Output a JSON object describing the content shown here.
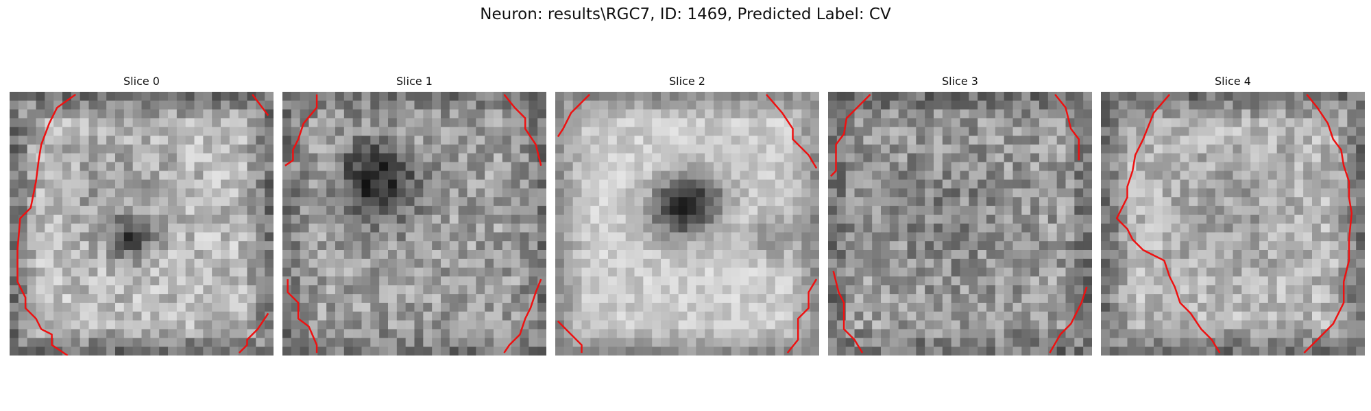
{
  "figure": {
    "title": "Neuron: results\\RGC7, ID: 1469, Predicted Label: CV",
    "line_color": "#ee1111",
    "colormap": "gray"
  },
  "panels": [
    {
      "title": "Slice 0",
      "seed": 11,
      "noise": 0.16,
      "base": 0.74,
      "edge_dark": 0.42,
      "blobs": [
        [
          0.47,
          0.56,
          0.08,
          0.42
        ],
        [
          0.4,
          0.38,
          0.25,
          0.12
        ]
      ],
      "contours": [
        [
          [
            0.25,
            0.01
          ],
          [
            0.18,
            0.06
          ],
          [
            0.15,
            0.12
          ],
          [
            0.12,
            0.2
          ],
          [
            0.11,
            0.26
          ],
          [
            0.1,
            0.34
          ],
          [
            0.08,
            0.44
          ],
          [
            0.04,
            0.48
          ],
          [
            0.03,
            0.6
          ],
          [
            0.03,
            0.72
          ],
          [
            0.06,
            0.78
          ],
          [
            0.06,
            0.82
          ],
          [
            0.1,
            0.86
          ],
          [
            0.12,
            0.9
          ],
          [
            0.16,
            0.92
          ],
          [
            0.16,
            0.96
          ],
          [
            0.22,
            1.0
          ]
        ],
        [
          [
            0.92,
            0.01
          ],
          [
            0.98,
            0.09
          ]
        ],
        [
          [
            0.98,
            0.84
          ],
          [
            0.94,
            0.9
          ],
          [
            0.9,
            0.94
          ],
          [
            0.9,
            0.96
          ],
          [
            0.87,
            0.99
          ]
        ]
      ]
    },
    {
      "title": "Slice 1",
      "seed": 23,
      "noise": 0.17,
      "base": 0.62,
      "edge_dark": 0.22,
      "blobs": [
        [
          0.38,
          0.36,
          0.14,
          0.38
        ],
        [
          0.32,
          0.28,
          0.1,
          0.2
        ]
      ],
      "contours": [
        [
          [
            0.13,
            0.01
          ],
          [
            0.13,
            0.06
          ],
          [
            0.08,
            0.12
          ],
          [
            0.06,
            0.18
          ],
          [
            0.04,
            0.22
          ],
          [
            0.04,
            0.26
          ],
          [
            0.01,
            0.28
          ]
        ],
        [
          [
            0.84,
            0.01
          ],
          [
            0.88,
            0.06
          ],
          [
            0.92,
            0.1
          ],
          [
            0.92,
            0.14
          ],
          [
            0.96,
            0.2
          ],
          [
            0.98,
            0.28
          ]
        ],
        [
          [
            0.02,
            0.71
          ],
          [
            0.02,
            0.76
          ],
          [
            0.06,
            0.8
          ],
          [
            0.06,
            0.86
          ],
          [
            0.1,
            0.89
          ],
          [
            0.13,
            0.96
          ],
          [
            0.13,
            0.99
          ]
        ],
        [
          [
            0.98,
            0.71
          ],
          [
            0.96,
            0.76
          ],
          [
            0.94,
            0.82
          ],
          [
            0.92,
            0.86
          ],
          [
            0.9,
            0.92
          ],
          [
            0.86,
            0.96
          ],
          [
            0.84,
            0.99
          ]
        ]
      ]
    },
    {
      "title": "Slice 2",
      "seed": 37,
      "noise": 0.1,
      "base": 0.8,
      "edge_dark": 0.35,
      "blobs": [
        [
          0.47,
          0.44,
          0.11,
          0.62
        ],
        [
          0.58,
          0.4,
          0.1,
          0.28
        ],
        [
          0.83,
          0.55,
          0.08,
          0.25
        ]
      ],
      "contours": [
        [
          [
            0.13,
            0.01
          ],
          [
            0.06,
            0.08
          ],
          [
            0.03,
            0.14
          ],
          [
            0.01,
            0.17
          ]
        ],
        [
          [
            0.8,
            0.01
          ],
          [
            0.86,
            0.08
          ],
          [
            0.9,
            0.14
          ],
          [
            0.9,
            0.18
          ],
          [
            0.96,
            0.24
          ],
          [
            0.99,
            0.29
          ]
        ],
        [
          [
            0.01,
            0.87
          ],
          [
            0.06,
            0.92
          ],
          [
            0.1,
            0.96
          ],
          [
            0.1,
            0.99
          ]
        ],
        [
          [
            0.99,
            0.71
          ],
          [
            0.96,
            0.76
          ],
          [
            0.96,
            0.82
          ],
          [
            0.92,
            0.86
          ],
          [
            0.92,
            0.94
          ],
          [
            0.88,
            0.99
          ]
        ]
      ]
    },
    {
      "title": "Slice 3",
      "seed": 53,
      "noise": 0.18,
      "base": 0.62,
      "edge_dark": 0.24,
      "blobs": [
        [
          0.45,
          0.45,
          0.3,
          0.1
        ]
      ],
      "contours": [
        [
          [
            0.16,
            0.01
          ],
          [
            0.1,
            0.07
          ],
          [
            0.07,
            0.1
          ],
          [
            0.06,
            0.16
          ],
          [
            0.03,
            0.2
          ],
          [
            0.03,
            0.3
          ],
          [
            0.01,
            0.32
          ]
        ],
        [
          [
            0.86,
            0.01
          ],
          [
            0.9,
            0.06
          ],
          [
            0.92,
            0.14
          ],
          [
            0.95,
            0.18
          ],
          [
            0.95,
            0.26
          ]
        ],
        [
          [
            0.02,
            0.68
          ],
          [
            0.04,
            0.76
          ],
          [
            0.06,
            0.8
          ],
          [
            0.06,
            0.9
          ],
          [
            0.1,
            0.94
          ],
          [
            0.13,
            0.99
          ]
        ],
        [
          [
            0.98,
            0.74
          ],
          [
            0.96,
            0.8
          ],
          [
            0.94,
            0.84
          ],
          [
            0.92,
            0.88
          ],
          [
            0.88,
            0.92
          ],
          [
            0.84,
            0.99
          ]
        ]
      ]
    },
    {
      "title": "Slice 4",
      "seed": 71,
      "noise": 0.15,
      "base": 0.72,
      "edge_dark": 0.4,
      "blobs": [
        [
          0.5,
          0.45,
          0.22,
          0.1
        ]
      ],
      "contours": [
        [
          [
            0.26,
            0.01
          ],
          [
            0.2,
            0.08
          ],
          [
            0.16,
            0.18
          ],
          [
            0.13,
            0.24
          ],
          [
            0.12,
            0.3
          ],
          [
            0.1,
            0.36
          ],
          [
            0.1,
            0.4
          ],
          [
            0.08,
            0.44
          ],
          [
            0.06,
            0.48
          ],
          [
            0.1,
            0.52
          ],
          [
            0.12,
            0.56
          ],
          [
            0.16,
            0.6
          ],
          [
            0.2,
            0.62
          ],
          [
            0.24,
            0.64
          ],
          [
            0.26,
            0.7
          ],
          [
            0.28,
            0.74
          ],
          [
            0.3,
            0.8
          ],
          [
            0.34,
            0.84
          ],
          [
            0.38,
            0.9
          ],
          [
            0.42,
            0.94
          ],
          [
            0.45,
            0.99
          ]
        ],
        [
          [
            0.78,
            0.01
          ],
          [
            0.82,
            0.06
          ],
          [
            0.86,
            0.12
          ],
          [
            0.88,
            0.18
          ],
          [
            0.91,
            0.22
          ],
          [
            0.92,
            0.28
          ],
          [
            0.94,
            0.34
          ],
          [
            0.94,
            0.4
          ],
          [
            0.95,
            0.46
          ],
          [
            0.94,
            0.56
          ],
          [
            0.94,
            0.64
          ],
          [
            0.92,
            0.72
          ],
          [
            0.92,
            0.8
          ],
          [
            0.9,
            0.84
          ],
          [
            0.88,
            0.88
          ],
          [
            0.84,
            0.92
          ],
          [
            0.8,
            0.96
          ],
          [
            0.77,
            0.99
          ]
        ]
      ]
    }
  ]
}
